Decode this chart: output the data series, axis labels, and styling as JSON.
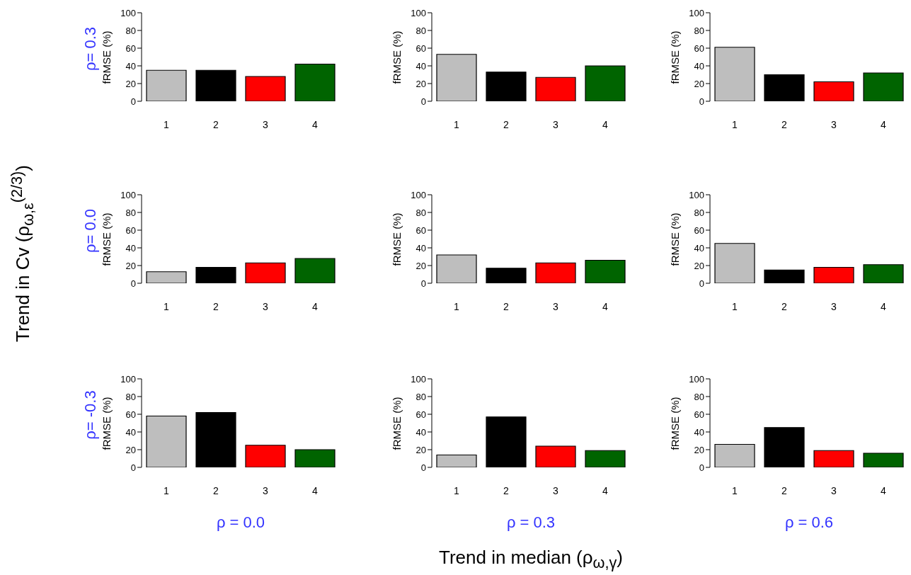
{
  "chart_data": [
    {
      "type": "bar",
      "ylabel": "fRMSE (%)",
      "annotations": [
        "ρ= 0.3"
      ],
      "categories": [
        "1",
        "2",
        "3",
        "4"
      ],
      "values": [
        35,
        35,
        28,
        42
      ],
      "colors": [
        "#bebebe",
        "#000000",
        "#ff0000",
        "#006400"
      ],
      "ylim": [
        0,
        100
      ],
      "yticks": [
        0,
        20,
        40,
        60,
        80,
        100
      ]
    },
    {
      "type": "bar",
      "ylabel": "fRMSE (%)",
      "categories": [
        "1",
        "2",
        "3",
        "4"
      ],
      "values": [
        53,
        33,
        27,
        40
      ],
      "colors": [
        "#bebebe",
        "#000000",
        "#ff0000",
        "#006400"
      ],
      "ylim": [
        0,
        100
      ],
      "yticks": [
        0,
        20,
        40,
        60,
        80,
        100
      ]
    },
    {
      "type": "bar",
      "ylabel": "fRMSE (%)",
      "categories": [
        "1",
        "2",
        "3",
        "4"
      ],
      "values": [
        61,
        30,
        22,
        32
      ],
      "colors": [
        "#bebebe",
        "#000000",
        "#ff0000",
        "#006400"
      ],
      "ylim": [
        0,
        100
      ],
      "yticks": [
        0,
        20,
        40,
        60,
        80,
        100
      ]
    },
    {
      "type": "bar",
      "ylabel": "fRMSE (%)",
      "annotations": [
        "ρ= 0.0",
        "Trend in Cv (ρ$_{ω,ε}$$^{(2/3)}$)"
      ],
      "categories": [
        "1",
        "2",
        "3",
        "4"
      ],
      "values": [
        13,
        18,
        23,
        28
      ],
      "colors": [
        "#bebebe",
        "#000000",
        "#ff0000",
        "#006400"
      ],
      "ylim": [
        0,
        100
      ],
      "yticks": [
        0,
        20,
        40,
        60,
        80,
        100
      ]
    },
    {
      "type": "bar",
      "ylabel": "fRMSE (%)",
      "categories": [
        "1",
        "2",
        "3",
        "4"
      ],
      "values": [
        32,
        17,
        23,
        26
      ],
      "colors": [
        "#bebebe",
        "#000000",
        "#ff0000",
        "#006400"
      ],
      "ylim": [
        0,
        100
      ],
      "yticks": [
        0,
        20,
        40,
        60,
        80,
        100
      ]
    },
    {
      "type": "bar",
      "ylabel": "fRMSE (%)",
      "categories": [
        "1",
        "2",
        "3",
        "4"
      ],
      "values": [
        45,
        15,
        18,
        21
      ],
      "colors": [
        "#bebebe",
        "#000000",
        "#ff0000",
        "#006400"
      ],
      "ylim": [
        0,
        100
      ],
      "yticks": [
        0,
        20,
        40,
        60,
        80,
        100
      ]
    },
    {
      "type": "bar",
      "ylabel": "fRMSE (%)",
      "xlabel": "ρ = 0.0",
      "annotations": [
        "ρ= -0.3"
      ],
      "categories": [
        "1",
        "2",
        "3",
        "4"
      ],
      "values": [
        58,
        62,
        25,
        20
      ],
      "colors": [
        "#bebebe",
        "#000000",
        "#ff0000",
        "#006400"
      ],
      "ylim": [
        0,
        100
      ],
      "yticks": [
        0,
        20,
        40,
        60,
        80,
        100
      ]
    },
    {
      "type": "bar",
      "ylabel": "fRMSE (%)",
      "xlabel": "ρ = 0.3",
      "annotations": [
        "Trend in median (ρ$_{ω,γ}$)"
      ],
      "categories": [
        "1",
        "2",
        "3",
        "4"
      ],
      "values": [
        14,
        57,
        24,
        19
      ],
      "colors": [
        "#bebebe",
        "#000000",
        "#ff0000",
        "#006400"
      ],
      "ylim": [
        0,
        100
      ],
      "yticks": [
        0,
        20,
        40,
        60,
        80,
        100
      ]
    },
    {
      "type": "bar",
      "ylabel": "fRMSE (%)",
      "xlabel": "ρ = 0.6",
      "categories": [
        "1",
        "2",
        "3",
        "4"
      ],
      "values": [
        26,
        45,
        19,
        16
      ],
      "colors": [
        "#bebebe",
        "#000000",
        "#ff0000",
        "#006400"
      ],
      "ylim": [
        0,
        100
      ],
      "yticks": [
        0,
        20,
        40,
        60,
        80,
        100
      ]
    }
  ]
}
